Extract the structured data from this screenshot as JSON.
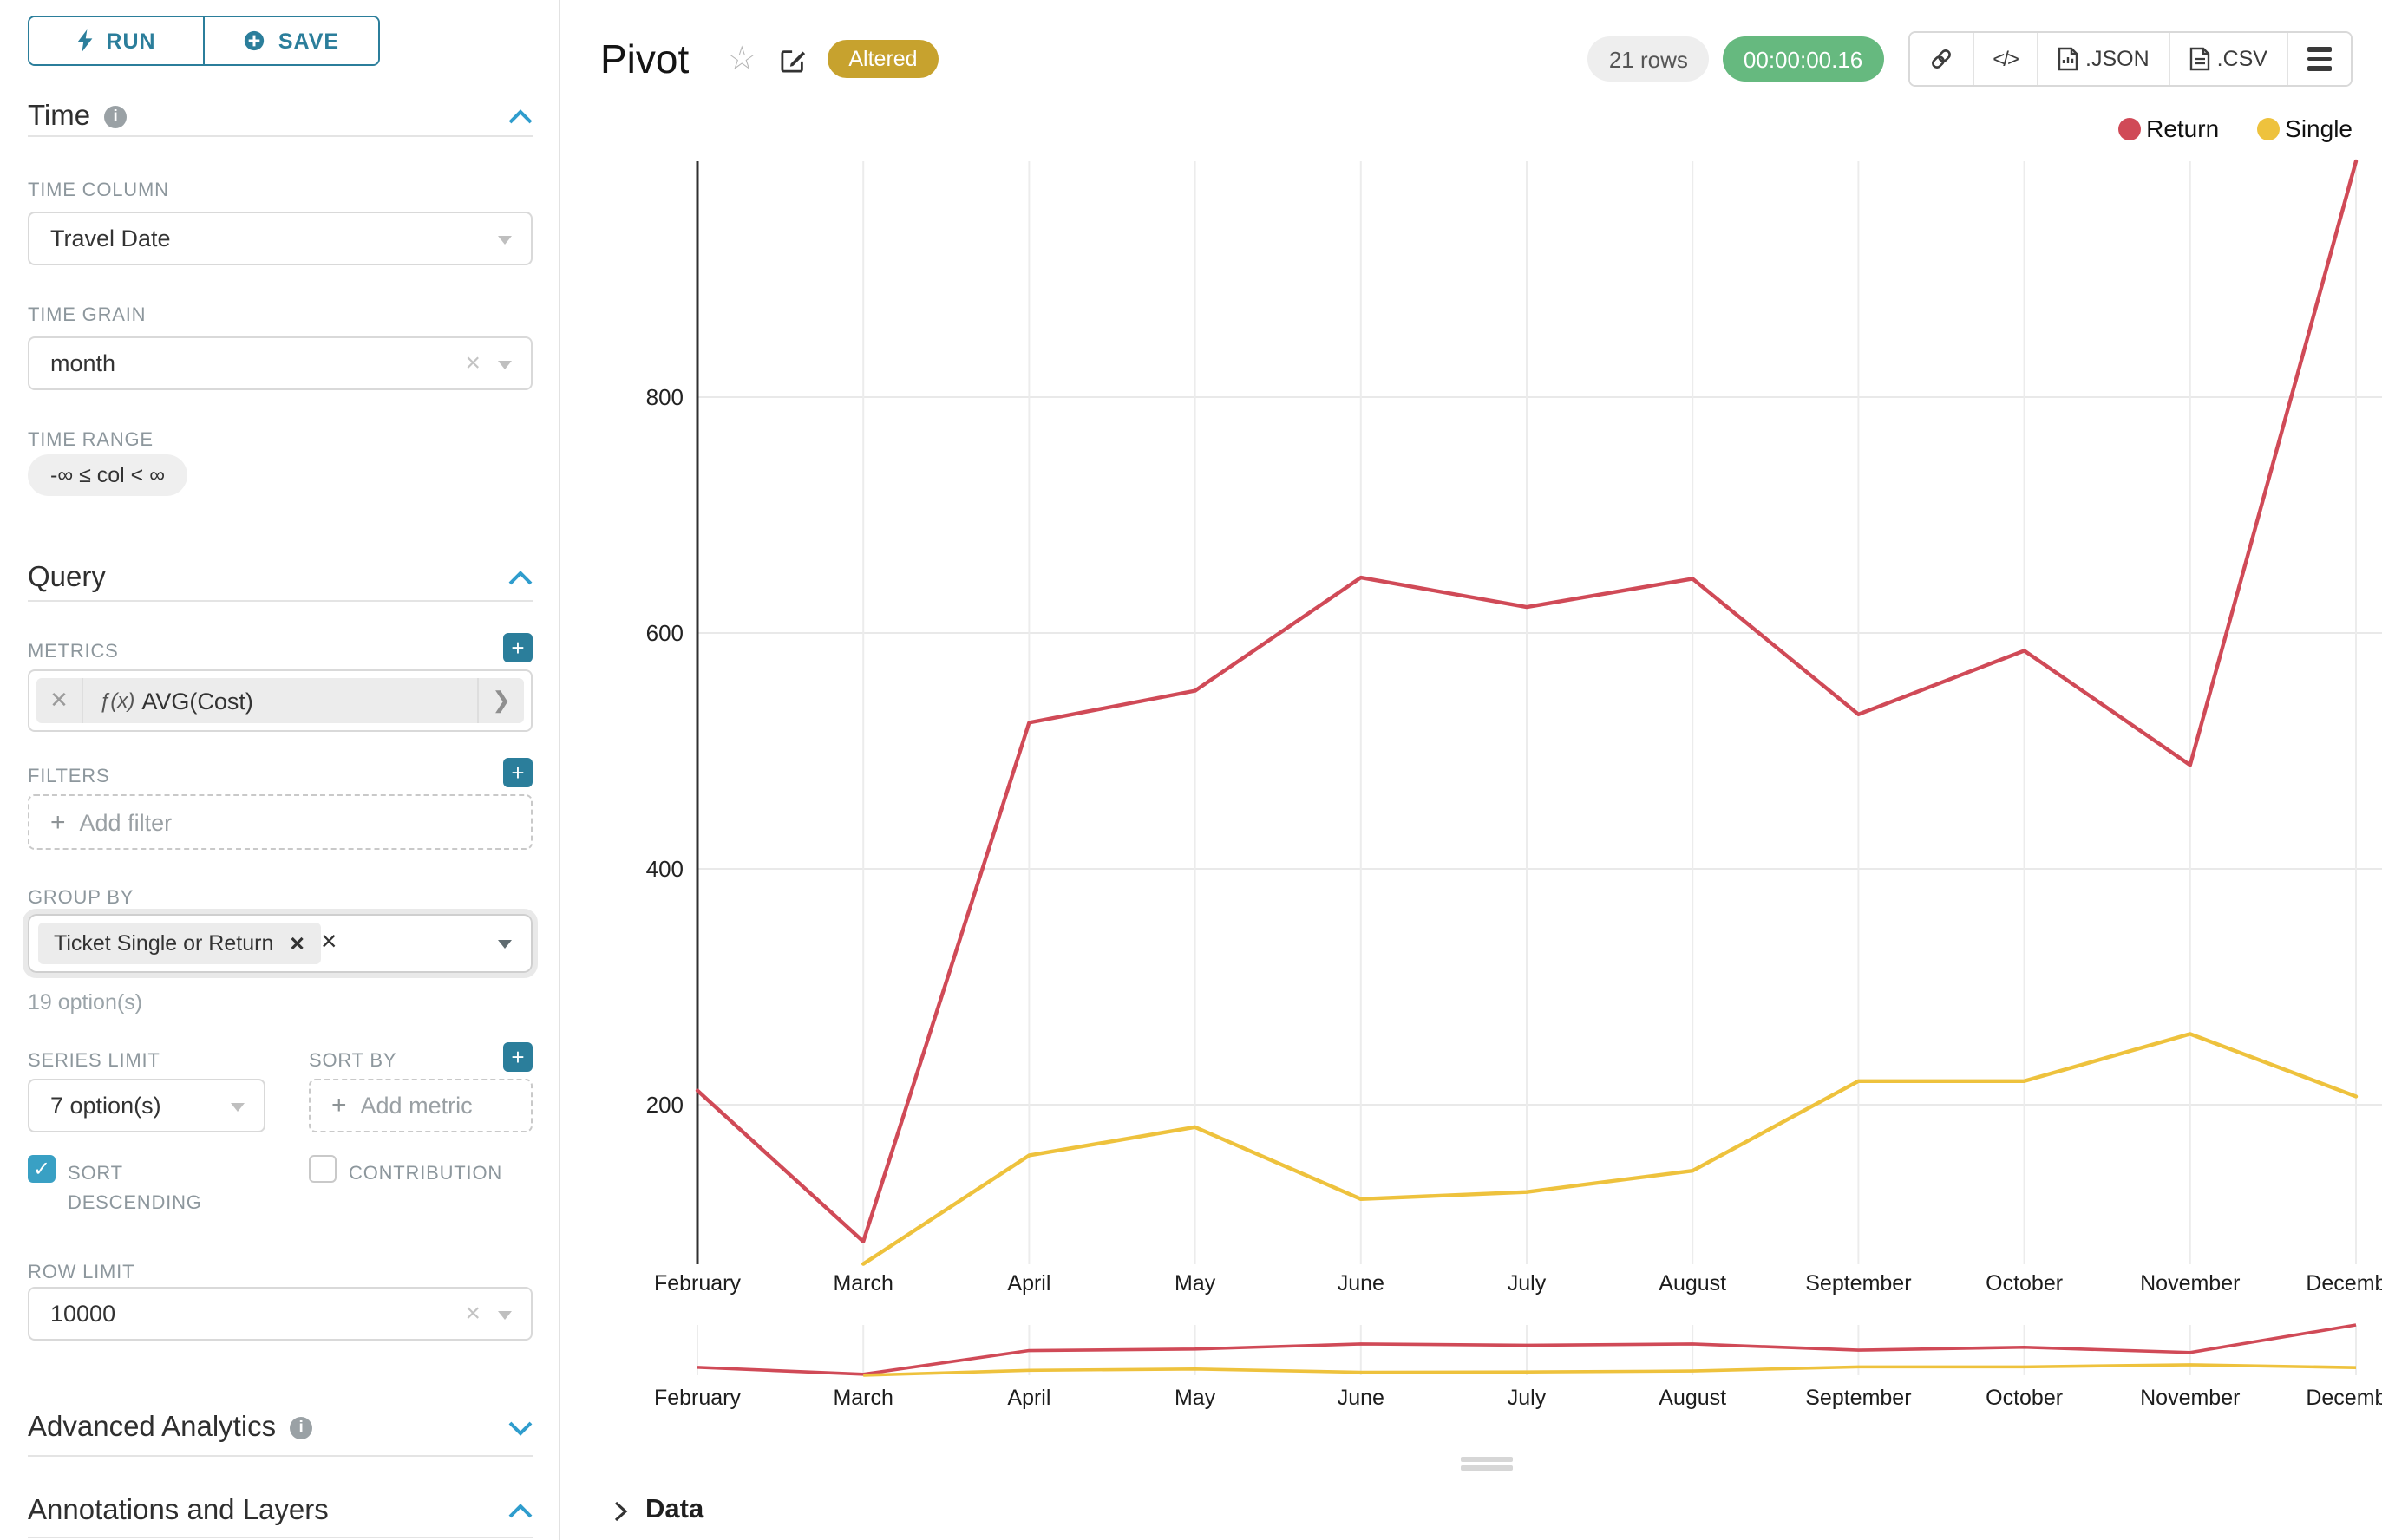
{
  "colors": {
    "primary_teal": "#2b7e9b",
    "accent_blue": "#2f9dcd",
    "checkbox_blue": "#39a0c4",
    "altered_gold": "#c7a22e",
    "timer_green": "#66b97f",
    "return_red": "#d04a57",
    "single_yellow": "#eec23d"
  },
  "icons": {
    "run": "lightning-bolt",
    "save": "plus-circle",
    "title_star": "star-outline",
    "title_edit": "edit-pencil-square",
    "share": "link-chain",
    "embed": "code-brackets",
    "json_export": "file-chart",
    "csv_export": "file-lines",
    "more": "hamburger-menu",
    "info": "info-circle",
    "collapse": "chevron-up",
    "expand": "chevron-down",
    "dropdown": "caret-down"
  },
  "sidebar": {
    "run_button": "RUN",
    "save_button": "SAVE",
    "time": {
      "title": "Time",
      "time_column_label": "TIME COLUMN",
      "time_column_value": "Travel Date",
      "time_grain_label": "TIME GRAIN",
      "time_grain_value": "month",
      "time_range_label": "TIME RANGE",
      "time_range_value": "-∞ ≤ col < ∞"
    },
    "query": {
      "title": "Query",
      "metrics_label": "METRICS",
      "metric_fx": "ƒ(x)",
      "metric_value": "AVG(Cost)",
      "filters_label": "FILTERS",
      "add_filter_placeholder": "Add filter",
      "group_by_label": "GROUP BY",
      "group_by_tag": "Ticket Single or Return",
      "group_by_hint": "19 option(s)",
      "series_limit_label": "SERIES LIMIT",
      "series_limit_value": "7 option(s)",
      "sort_by_label": "SORT BY",
      "add_metric_placeholder": "Add metric",
      "sort_descending_label": "SORT DESCENDING",
      "sort_descending_checked": true,
      "contribution_label": "CONTRIBUTION",
      "contribution_checked": false,
      "row_limit_label": "ROW LIMIT",
      "row_limit_value": "10000"
    },
    "advanced_analytics": {
      "title": "Advanced Analytics"
    },
    "annotations": {
      "title": "Annotations and Layers"
    }
  },
  "header": {
    "title": "Pivot",
    "altered_badge": "Altered",
    "rows_badge": "21 rows",
    "timer_badge": "00:00:00.16",
    "json_button": ".JSON",
    "csv_button": ".CSV"
  },
  "footer": {
    "data_label": "Data"
  },
  "chart_data": {
    "type": "line",
    "title": "Pivot",
    "categories": [
      "February",
      "March",
      "April",
      "May",
      "June",
      "July",
      "August",
      "September",
      "October",
      "November",
      "December"
    ],
    "series": [
      {
        "name": "Return",
        "color": "#d04a57",
        "values": [
          212,
          84,
          524,
          551,
          647,
          622,
          646,
          531,
          585,
          488,
          1000
        ]
      },
      {
        "name": "Single",
        "color": "#eec23d",
        "values": [
          null,
          65,
          157,
          181,
          120,
          126,
          144,
          220,
          220,
          260,
          207
        ]
      }
    ],
    "xlabel": "",
    "ylabel": "",
    "yticks": [
      200,
      400,
      600,
      800
    ],
    "ylim": [
      65,
      1000
    ],
    "grid": true,
    "legend_position": "top-right",
    "has_mini_preview": true
  }
}
